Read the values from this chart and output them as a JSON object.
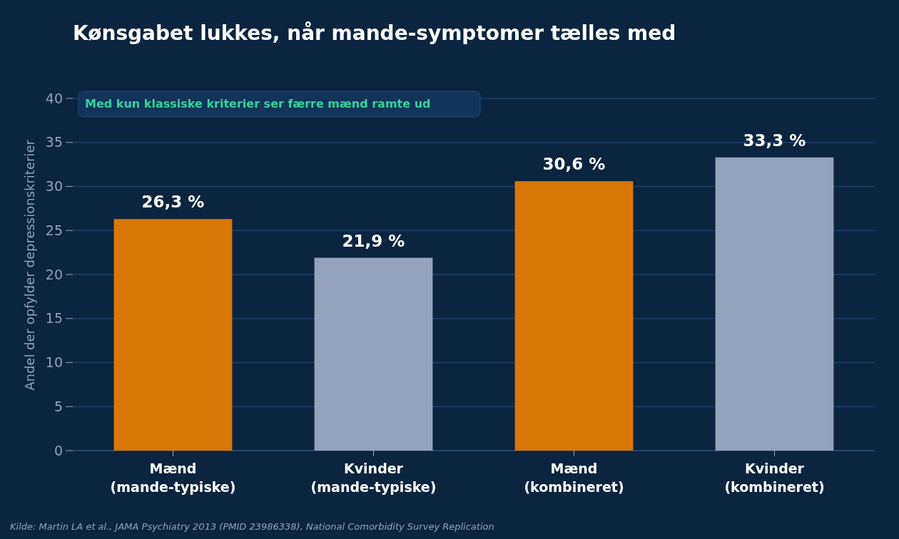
{
  "chart_data": {
    "type": "bar",
    "title": "Kønsgabet lukkes, når mande-symptomer tælles med",
    "ylabel": "Andel der opfylder depressionskriterier",
    "categories": [
      "Mænd\n(mande-typiske)",
      "Kvinder\n(mande-typiske)",
      "Mænd\n(kombineret)",
      "Kvinder\n(kombineret)"
    ],
    "values": [
      26.3,
      21.9,
      30.6,
      33.3
    ],
    "colors": [
      "#d97706",
      "#94a3bb",
      "#d97706",
      "#94a3bb"
    ],
    "value_labels": [
      "26,3 %",
      "21,9 %",
      "30,6 %",
      "33,3 %"
    ],
    "ylim": [
      0,
      40
    ],
    "yticks": [
      0,
      5,
      10,
      15,
      20,
      25,
      30,
      35,
      40
    ],
    "grid": "y",
    "annotations": [
      "Med kun klassiske kriterier ser færre mænd ramte ud",
      "Kilde: Martin LA et al., JAMA Psychiatry 2013 (PMID 23986338), National Comorbidity Survey Replication"
    ]
  }
}
